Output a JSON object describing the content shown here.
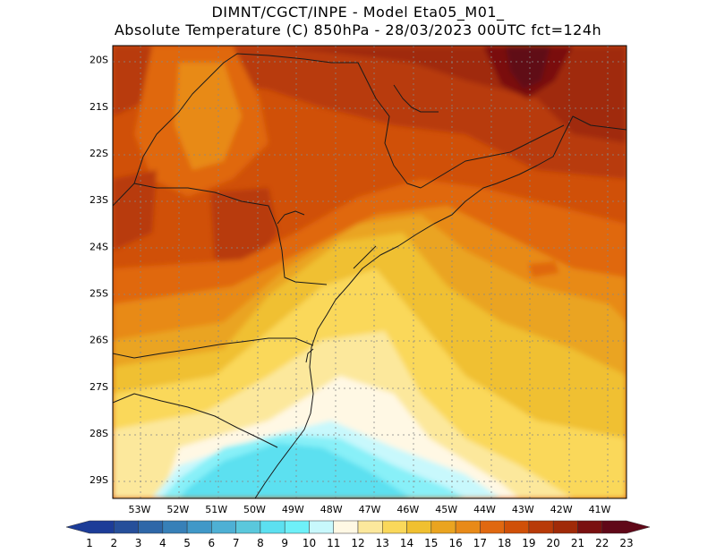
{
  "header": {
    "line1": "DIMNT/CGCT/INPE -  Model Eta05_M01_",
    "line2": "Absolute Temperature (C) 850hPa -  28/03/2023 00UTC fct=124h"
  },
  "map": {
    "lat_labels": [
      "20S",
      "21S",
      "22S",
      "23S",
      "24S",
      "25S",
      "26S",
      "27S",
      "28S",
      "29S"
    ],
    "lon_labels": [
      "53W",
      "52W",
      "51W",
      "50W",
      "49W",
      "48W",
      "47W",
      "46W",
      "45W",
      "44W",
      "43W",
      "42W",
      "41W"
    ],
    "lat_range": [
      -29.4,
      -19.7
    ],
    "lon_range": [
      -53.7,
      -40.3
    ],
    "field_colors": {
      "c9": "#5ce0f0",
      "c10": "#88f0f8",
      "c11": "#c8f8fc",
      "c12": "#fff8e4",
      "c13": "#fce89c",
      "c14": "#fad85a",
      "c15": "#f0c030",
      "c16": "#eaa420",
      "c17": "#e88a18",
      "c18": "#e06810",
      "c19": "#d05008",
      "c20": "#b83a08",
      "c21": "#a02a08",
      "c22": "#7a1010",
      "c23": "#600818"
    }
  },
  "colorbar": {
    "labels": [
      "1",
      "2",
      "3",
      "4",
      "5",
      "6",
      "7",
      "8",
      "9",
      "10",
      "11",
      "12",
      "13",
      "14",
      "15",
      "16",
      "17",
      "18",
      "19",
      "20",
      "21",
      "22",
      "23"
    ],
    "colors": [
      "#1c3c98",
      "#264f9a",
      "#2e67a8",
      "#3780b8",
      "#4098c8",
      "#4eb0d4",
      "#5ac8dc",
      "#5ce0f0",
      "#6ef0f8",
      "#c8f8fc",
      "#fff8e4",
      "#fce89c",
      "#fad85a",
      "#f0c030",
      "#eaa420",
      "#e88a18",
      "#e06810",
      "#d05008",
      "#b83a08",
      "#a02a08",
      "#7a1010",
      "#600818"
    ]
  }
}
